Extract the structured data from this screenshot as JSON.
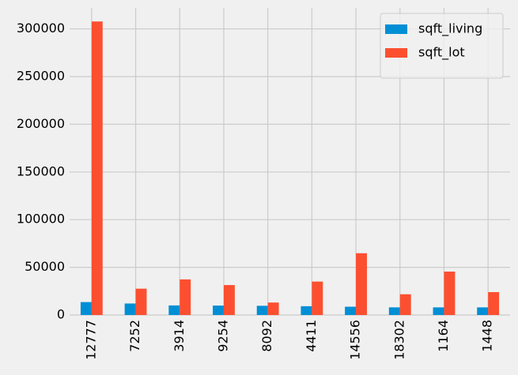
{
  "chart_data": {
    "type": "bar",
    "categories": [
      "12777",
      "7252",
      "3914",
      "9254",
      "8092",
      "4411",
      "14556",
      "18302",
      "1164",
      "1448"
    ],
    "series": [
      {
        "name": "sqft_living",
        "color": "#008fd5",
        "values": [
          13540,
          12050,
          10040,
          9890,
          9640,
          9200,
          8670,
          8020,
          8010,
          8000
        ]
      },
      {
        "name": "sqft_lot",
        "color": "#fc4f30",
        "values": [
          307752,
          27600,
          37325,
          31374,
          13068,
          35069,
          64763,
          21738,
          45517,
          23985
        ]
      }
    ],
    "ylim": [
      0,
      322000
    ],
    "yticks": [
      0,
      50000,
      100000,
      150000,
      200000,
      250000,
      300000
    ],
    "grid": true,
    "legend": "upper right"
  }
}
